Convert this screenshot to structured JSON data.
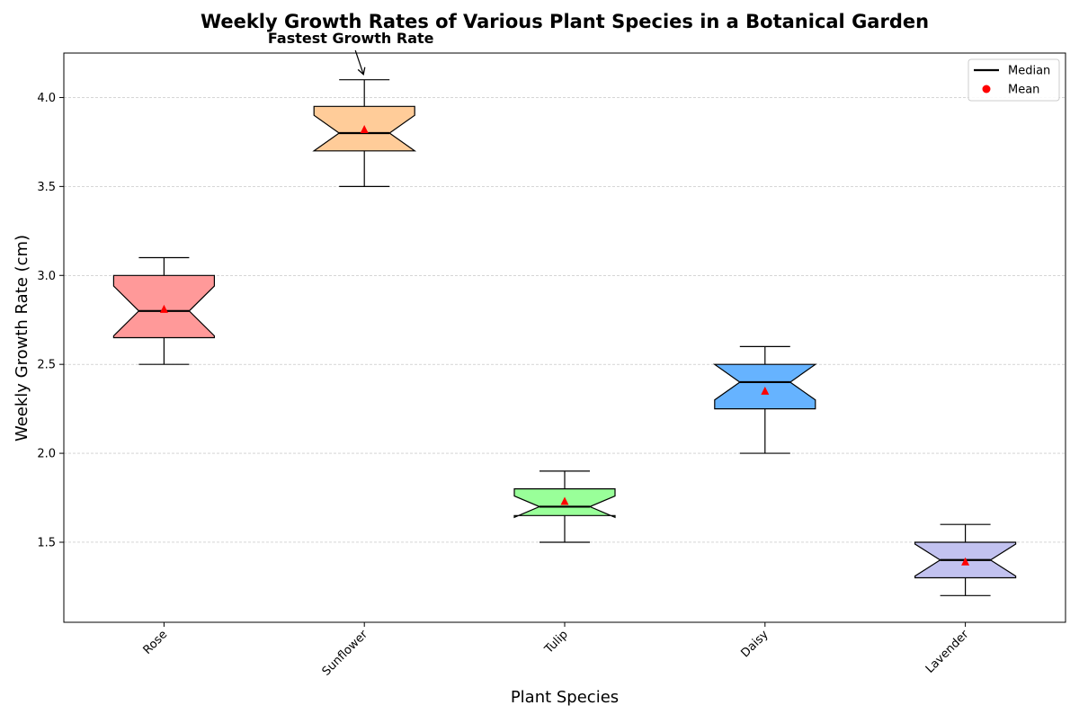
{
  "chart_data": {
    "type": "box",
    "title": "Weekly Growth Rates of Various Plant Species in a Botanical Garden",
    "xlabel": "Plant Species",
    "ylabel": "Weekly Growth Rate (cm)",
    "ylim": [
      1.05,
      4.25
    ],
    "yticks": [
      1.5,
      2.0,
      2.5,
      3.0,
      3.5,
      4.0
    ],
    "ytick_labels": [
      "1.5",
      "2.0",
      "2.5",
      "3.0",
      "3.5",
      "4.0"
    ],
    "grid": "horizontal dashed",
    "legend": {
      "placement": "top-right",
      "entries": [
        {
          "label": "Median",
          "marker": "line",
          "color": "#000000"
        },
        {
          "label": "Mean",
          "marker": "dot",
          "color": "#ff0000"
        }
      ]
    },
    "categories": [
      "Rose",
      "Sunflower",
      "Tulip",
      "Daisy",
      "Lavender"
    ],
    "boxes": [
      {
        "category": "Rose",
        "whislo": 2.5,
        "q1": 2.65,
        "med": 2.8,
        "q3": 3.0,
        "whishi": 3.1,
        "mean": 2.81,
        "notch_lo": 2.66,
        "notch_hi": 2.94,
        "color": "#ff9999"
      },
      {
        "category": "Sunflower",
        "whislo": 3.5,
        "q1": 3.7,
        "med": 3.8,
        "q3": 3.95,
        "whishi": 4.1,
        "mean": 3.82,
        "notch_lo": 3.7,
        "notch_hi": 3.9,
        "color": "#ffcc99"
      },
      {
        "category": "Tulip",
        "whislo": 1.5,
        "q1": 1.65,
        "med": 1.7,
        "q3": 1.8,
        "whishi": 1.9,
        "mean": 1.73,
        "notch_lo": 1.64,
        "notch_hi": 1.76,
        "color": "#99ff99"
      },
      {
        "category": "Daisy",
        "whislo": 2.0,
        "q1": 2.25,
        "med": 2.4,
        "q3": 2.5,
        "whishi": 2.6,
        "mean": 2.35,
        "notch_lo": 2.3,
        "notch_hi": 2.5,
        "color": "#66b3ff"
      },
      {
        "category": "Lavender",
        "whislo": 1.2,
        "q1": 1.3,
        "med": 1.4,
        "q3": 1.5,
        "whishi": 1.6,
        "mean": 1.39,
        "notch_lo": 1.31,
        "notch_hi": 1.49,
        "color": "#c2c2f0"
      }
    ],
    "annotation": {
      "text": "Fastest Growth Rate",
      "target_category": "Sunflower",
      "target_value": 4.12
    }
  }
}
